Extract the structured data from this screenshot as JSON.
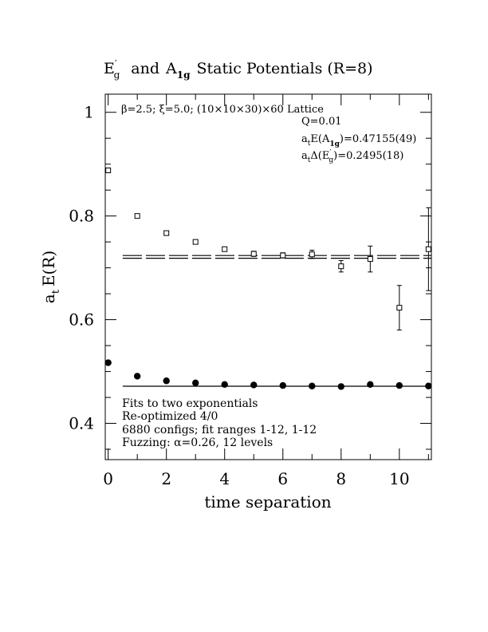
{
  "chart_data": {
    "type": "scatter",
    "title_parts": {
      "e_main": "E",
      "e_prime": "′",
      "e_sub": "g",
      "mid": "and",
      "a_main": "A",
      "a_sub": "1g",
      "tail": "Static Potentials (R=8)"
    },
    "xlabel": "time separation",
    "ylabel_main": "a",
    "ylabel_sub": "t",
    "ylabel_tail": "E(R)",
    "xlim": [
      -0.1,
      11.1
    ],
    "ylim": [
      0.33,
      1.035
    ],
    "x_ticks": [
      0,
      2,
      4,
      6,
      8,
      10
    ],
    "x_tick_labels": [
      "0",
      "2",
      "4",
      "6",
      "8",
      "10"
    ],
    "y_ticks": [
      0.4,
      0.6,
      0.8,
      1.0
    ],
    "y_tick_labels": [
      "0.4",
      "0.6",
      "0.8",
      "1"
    ],
    "grid": false,
    "series": [
      {
        "marker": "square-open",
        "points": [
          {
            "x": 0,
            "y": 0.888,
            "err": 0.004
          },
          {
            "x": 1,
            "y": 0.8,
            "err": 0.004
          },
          {
            "x": 2,
            "y": 0.767,
            "err": 0.004
          },
          {
            "x": 3,
            "y": 0.75,
            "err": 0.004
          },
          {
            "x": 4,
            "y": 0.736,
            "err": 0.004
          },
          {
            "x": 5,
            "y": 0.727,
            "err": 0.005
          },
          {
            "x": 6,
            "y": 0.724,
            "err": 0.005
          },
          {
            "x": 7,
            "y": 0.726,
            "err": 0.008
          },
          {
            "x": 8,
            "y": 0.703,
            "err": 0.011
          },
          {
            "x": 9,
            "y": 0.717,
            "err": 0.025
          },
          {
            "x": 10,
            "y": 0.623,
            "err": 0.043
          },
          {
            "x": 11,
            "y": 0.736,
            "err": 0.08
          }
        ]
      },
      {
        "marker": "circle-filled",
        "points": [
          {
            "x": 0,
            "y": 0.517
          },
          {
            "x": 1,
            "y": 0.491
          },
          {
            "x": 2,
            "y": 0.482
          },
          {
            "x": 3,
            "y": 0.478
          },
          {
            "x": 4,
            "y": 0.475
          },
          {
            "x": 5,
            "y": 0.474
          },
          {
            "x": 6,
            "y": 0.473
          },
          {
            "x": 7,
            "y": 0.472
          },
          {
            "x": 8,
            "y": 0.471
          },
          {
            "x": 9,
            "y": 0.475
          },
          {
            "x": 10,
            "y": 0.473
          },
          {
            "x": 11,
            "y": 0.472
          }
        ]
      }
    ],
    "fits": [
      {
        "style": "solid",
        "x_range": [
          0.5,
          11.1
        ],
        "y": 0.4716
      },
      {
        "style": "dashed",
        "x_range": [
          0.5,
          11.1
        ],
        "y": 0.7238
      },
      {
        "style": "dashed",
        "x_range": [
          0.5,
          11.1
        ],
        "y": 0.7185
      }
    ],
    "annotations": {
      "lattice": "β=2.5; ξ=5.0; (10×10×30)×60 Lattice",
      "q": "Q=0.01",
      "energy": {
        "pre": "a",
        "pre_sub": "t",
        "mid": "E(A",
        "sub": "1g",
        "tail": ")=0.47155(49)"
      },
      "gap": {
        "pre": "a",
        "pre_sub": "t",
        "mid": "Δ(E",
        "prime": "′",
        "sub": "g",
        "tail": ")=0.2495(18)"
      },
      "notes": [
        "Fits to two exponentials",
        "Re-optimized 4/0",
        "6880 configs; fit ranges 1-12, 1-12",
        "Fuzzing: α=0.26, 12 levels"
      ]
    }
  }
}
